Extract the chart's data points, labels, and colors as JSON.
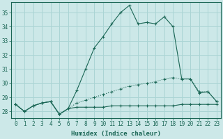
{
  "xlabel": "Humidex (Indice chaleur)",
  "bg_color": "#cce8e8",
  "grid_color": "#aad4d4",
  "line_color": "#1a6655",
  "hours": [
    0,
    1,
    2,
    3,
    4,
    5,
    6,
    7,
    8,
    9,
    10,
    11,
    12,
    13,
    14,
    15,
    16,
    17,
    18,
    19,
    20,
    21,
    22,
    23
  ],
  "humidex": [
    28.5,
    28.0,
    28.4,
    28.6,
    28.7,
    27.8,
    28.2,
    29.5,
    31.0,
    32.5,
    33.3,
    34.2,
    35.0,
    35.5,
    34.2,
    34.3,
    34.2,
    34.7,
    34.0,
    30.3,
    30.3,
    29.3,
    29.4,
    28.7
  ],
  "temp": [
    28.5,
    28.0,
    28.4,
    28.6,
    28.7,
    27.8,
    28.2,
    28.6,
    28.8,
    29.0,
    29.2,
    29.4,
    29.6,
    29.8,
    29.9,
    30.0,
    30.1,
    30.3,
    30.4,
    30.3,
    30.3,
    29.4,
    29.4,
    28.7
  ],
  "dew": [
    28.5,
    28.0,
    28.4,
    28.6,
    28.7,
    27.8,
    28.2,
    28.3,
    28.3,
    28.3,
    28.3,
    28.4,
    28.4,
    28.4,
    28.4,
    28.4,
    28.4,
    28.4,
    28.4,
    28.5,
    28.5,
    28.5,
    28.5,
    28.5
  ],
  "ylim_min": 27.55,
  "ylim_max": 35.75,
  "yticks": [
    28,
    29,
    30,
    31,
    32,
    33,
    34,
    35
  ],
  "tick_fontsize": 5.5,
  "xlabel_fontsize": 6.5
}
